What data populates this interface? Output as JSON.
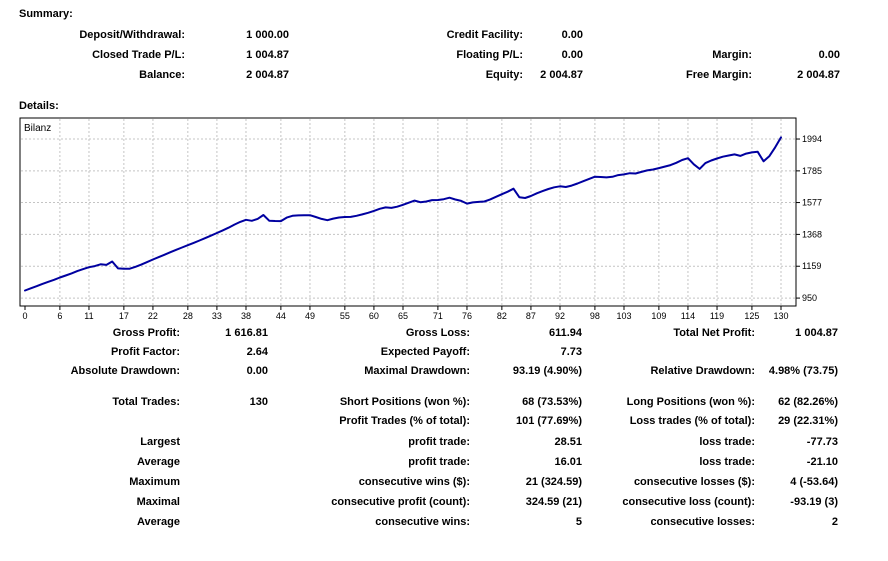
{
  "summary": {
    "heading": "Summary:",
    "rows": [
      {
        "cells": [
          {
            "c": 1,
            "label": "Deposit/Withdrawal:",
            "value": "1 000.00"
          },
          {
            "c": 2,
            "label": "Credit Facility:",
            "value": "0.00"
          }
        ]
      },
      {
        "cells": [
          {
            "c": 1,
            "label": "Closed Trade P/L:",
            "value": "1 004.87"
          },
          {
            "c": 2,
            "label": "Floating P/L:",
            "value": "0.00"
          },
          {
            "c": 3,
            "label": "Margin:",
            "value": "0.00"
          }
        ]
      },
      {
        "cells": [
          {
            "c": 1,
            "label": "Balance:",
            "value": "2 004.87"
          },
          {
            "c": 2,
            "label": "Equity:",
            "value": "2 004.87"
          },
          {
            "c": 3,
            "label": "Free Margin:",
            "value": "2 004.87"
          }
        ]
      }
    ]
  },
  "details": {
    "heading": "Details:",
    "groups": [
      {
        "rows": [
          {
            "cells": [
              {
                "c": 1,
                "label": "Gross Profit:",
                "value": "1 616.81"
              },
              {
                "c": 2,
                "label": "Gross Loss:",
                "value": "611.94"
              },
              {
                "c": 3,
                "label": "Total Net Profit:",
                "value": "1 004.87"
              }
            ]
          },
          {
            "cells": [
              {
                "c": 1,
                "label": "Profit Factor:",
                "value": "2.64"
              },
              {
                "c": 2,
                "label": "Expected Payoff:",
                "value": "7.73"
              }
            ]
          },
          {
            "cells": [
              {
                "c": 1,
                "label": "Absolute Drawdown:",
                "value": "0.00"
              },
              {
                "c": 2,
                "label": "Maximal Drawdown:",
                "value": "93.19 (4.90%)"
              },
              {
                "c": 3,
                "label": "Relative Drawdown:",
                "value": "4.98% (73.75)"
              }
            ]
          }
        ]
      },
      {
        "rows": [
          {
            "cells": [
              {
                "c": 1,
                "label": "Total Trades:",
                "value": "130"
              },
              {
                "c": 2,
                "label": "Short Positions (won %):",
                "value": "68 (73.53%)"
              },
              {
                "c": 3,
                "label": "Long Positions (won %):",
                "value": "62 (82.26%)"
              }
            ]
          },
          {
            "cells": [
              {
                "c": 2,
                "label": "Profit Trades (% of total):",
                "value": "101 (77.69%)"
              },
              {
                "c": 3,
                "label": "Loss trades (% of total):",
                "value": "29 (22.31%)"
              }
            ]
          }
        ]
      },
      {
        "rows": [
          {
            "cells": [
              {
                "c": 1,
                "label": "Largest",
                "value": ""
              },
              {
                "c": 2,
                "label": "profit trade:",
                "value": "28.51"
              },
              {
                "c": 3,
                "label": "loss trade:",
                "value": "-77.73"
              }
            ]
          },
          {
            "cells": [
              {
                "c": 1,
                "label": "Average",
                "value": ""
              },
              {
                "c": 2,
                "label": "profit trade:",
                "value": "16.01"
              },
              {
                "c": 3,
                "label": "loss trade:",
                "value": "-21.10"
              }
            ]
          },
          {
            "cells": [
              {
                "c": 1,
                "label": "Maximum",
                "value": ""
              },
              {
                "c": 2,
                "label": "consecutive wins ($):",
                "value": "21 (324.59)"
              },
              {
                "c": 3,
                "label": "consecutive losses ($):",
                "value": "4 (-53.64)"
              }
            ]
          },
          {
            "cells": [
              {
                "c": 1,
                "label": "Maximal",
                "value": ""
              },
              {
                "c": 2,
                "label": "consecutive profit (count):",
                "value": "324.59 (21)"
              },
              {
                "c": 3,
                "label": "consecutive loss (count):",
                "value": "-93.19 (3)"
              }
            ]
          },
          {
            "cells": [
              {
                "c": 1,
                "label": "Average",
                "value": ""
              },
              {
                "c": 2,
                "label": "consecutive wins:",
                "value": "5"
              },
              {
                "c": 3,
                "label": "consecutive losses:",
                "value": "2"
              }
            ]
          }
        ]
      }
    ]
  },
  "chart_data": {
    "type": "line",
    "title": "Bilanz",
    "series_name": "Bilanz",
    "xlabel": "",
    "ylabel": "",
    "x_ticks": [
      0,
      6,
      11,
      17,
      22,
      28,
      33,
      38,
      44,
      49,
      55,
      60,
      65,
      71,
      76,
      82,
      87,
      92,
      98,
      103,
      109,
      114,
      119,
      125,
      130
    ],
    "y_ticks": [
      950,
      1159,
      1368,
      1577,
      1785,
      1994
    ],
    "x_range": [
      0,
      130
    ],
    "y_range": [
      898,
      2132
    ],
    "grid": "dashed",
    "legend_position": "top-left",
    "line_color": "#0000a0",
    "grid_color": "#c4c4c4",
    "axis_color": "#000000",
    "balance": [
      1000,
      1014,
      1028,
      1043,
      1057,
      1070,
      1085,
      1098,
      1112,
      1127,
      1140,
      1153,
      1160,
      1172,
      1168,
      1190,
      1145,
      1142,
      1143,
      1155,
      1170,
      1186,
      1203,
      1219,
      1235,
      1251,
      1267,
      1282,
      1297,
      1312,
      1328,
      1344,
      1360,
      1377,
      1394,
      1412,
      1432,
      1450,
      1464,
      1457,
      1470,
      1495,
      1458,
      1456,
      1455,
      1478,
      1490,
      1493,
      1494,
      1494,
      1482,
      1470,
      1461,
      1472,
      1479,
      1482,
      1483,
      1490,
      1499,
      1510,
      1522,
      1536,
      1545,
      1542,
      1550,
      1562,
      1576,
      1590,
      1579,
      1584,
      1593,
      1594,
      1599,
      1609,
      1597,
      1588,
      1570,
      1578,
      1581,
      1584,
      1598,
      1615,
      1632,
      1648,
      1668,
      1612,
      1607,
      1620,
      1638,
      1652,
      1666,
      1677,
      1684,
      1679,
      1688,
      1702,
      1717,
      1732,
      1747,
      1745,
      1742,
      1746,
      1757,
      1762,
      1770,
      1768,
      1778,
      1788,
      1794,
      1803,
      1813,
      1823,
      1838,
      1856,
      1868,
      1828,
      1798,
      1836,
      1853,
      1866,
      1878,
      1886,
      1893,
      1883,
      1898,
      1906,
      1910,
      1848,
      1882,
      1940,
      2004.87
    ]
  }
}
